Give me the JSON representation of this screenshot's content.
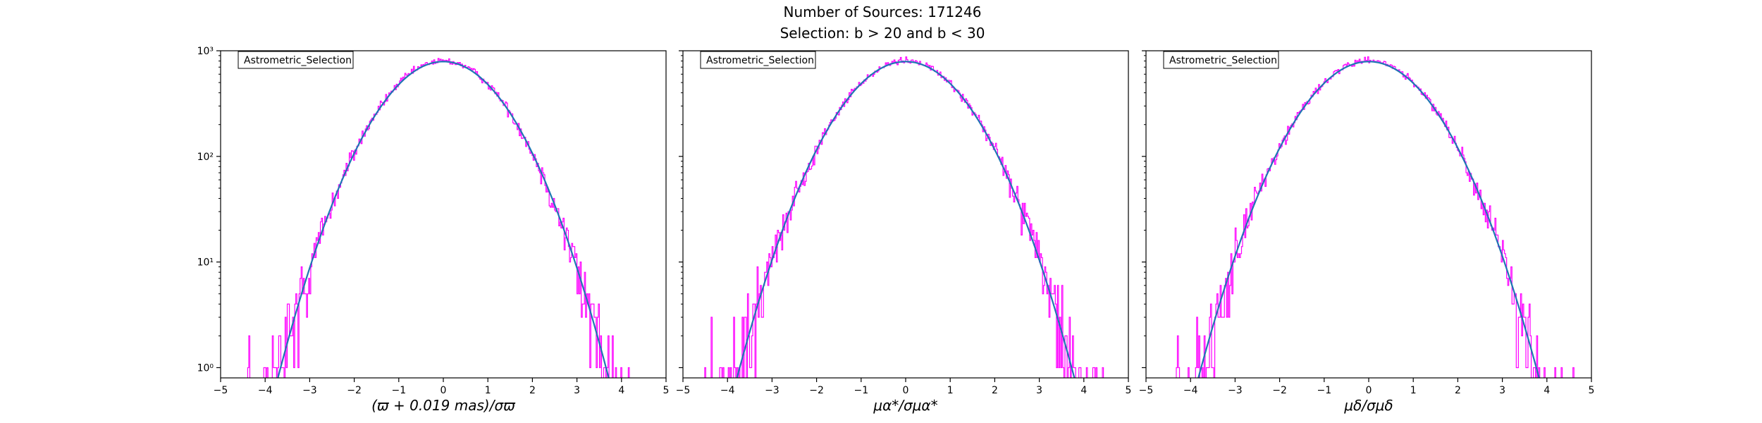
{
  "figure": {
    "title_line1": "Number of Sources: 171246",
    "title_line2": "Selection: b > 20 and b < 30"
  },
  "colors": {
    "histogram": "#ff00ff",
    "model_curve": "#1f77b4",
    "axes": "#000000"
  },
  "chart_data": [
    {
      "type": "line",
      "panel": "parallax",
      "xlabel": "(ϖ + 0.019 mas)/σϖ",
      "ylabel": "",
      "xlim": [
        -5,
        5
      ],
      "ylim": [
        0.8,
        1000
      ],
      "yscale": "log",
      "xticks": [
        "−5",
        "−4",
        "−3",
        "−2",
        "−1",
        "0",
        "1",
        "2",
        "3",
        "4",
        "5"
      ],
      "xtick_values": [
        -5,
        -4,
        -3,
        -2,
        -1,
        0,
        1,
        2,
        3,
        4,
        5
      ],
      "yticks": [
        "10³",
        "10²",
        "10¹",
        "10⁰"
      ],
      "ytick_values": [
        1000,
        100,
        10,
        1
      ],
      "legend": "Astrometric_Selection",
      "legend_position": "top-left",
      "series": [
        {
          "name": "histogram",
          "kind": "step",
          "peak": 800,
          "center": 0.0,
          "sigma": 1.0,
          "x_range": [
            -4.8,
            4.8
          ],
          "bins": 400
        },
        {
          "name": "gaussian model",
          "kind": "line",
          "peak": 790,
          "center": 0.0,
          "sigma": 1.0,
          "x_range": [
            -3.86,
            3.86
          ]
        }
      ]
    },
    {
      "type": "line",
      "panel": "pmra",
      "xlabel": "μα*/σμα*",
      "ylabel": "",
      "xlim": [
        -5,
        5
      ],
      "ylim": [
        0.8,
        1000
      ],
      "yscale": "log",
      "xticks": [
        "−5",
        "−4",
        "−3",
        "−2",
        "−1",
        "0",
        "1",
        "2",
        "3",
        "4",
        "5"
      ],
      "xtick_values": [
        -5,
        -4,
        -3,
        -2,
        -1,
        0,
        1,
        2,
        3,
        4,
        5
      ],
      "yticks": [
        "10³",
        "10²",
        "10¹",
        "10⁰"
      ],
      "ytick_values": [
        1000,
        100,
        10,
        1
      ],
      "legend": "Astrometric_Selection",
      "legend_position": "top-left",
      "series": [
        {
          "name": "histogram",
          "kind": "step",
          "peak": 800,
          "center": 0.0,
          "sigma": 1.02,
          "x_range": [
            -4.8,
            4.8
          ],
          "bins": 400
        },
        {
          "name": "gaussian model",
          "kind": "line",
          "peak": 790,
          "center": 0.0,
          "sigma": 1.02,
          "x_range": [
            -3.95,
            3.95
          ]
        }
      ]
    },
    {
      "type": "line",
      "panel": "pmdec",
      "xlabel": "μδ/σμδ",
      "ylabel": "",
      "xlim": [
        -5,
        5
      ],
      "ylim": [
        0.8,
        1000
      ],
      "yscale": "log",
      "xticks": [
        "−5",
        "−4",
        "−3",
        "−2",
        "−1",
        "0",
        "1",
        "2",
        "3",
        "4",
        "5"
      ],
      "xtick_values": [
        -5,
        -4,
        -3,
        -2,
        -1,
        0,
        1,
        2,
        3,
        4,
        5
      ],
      "yticks": [
        "10³",
        "10²",
        "10¹",
        "10⁰"
      ],
      "ytick_values": [
        1000,
        100,
        10,
        1
      ],
      "legend": "Astrometric_Selection",
      "legend_position": "top-left",
      "series": [
        {
          "name": "histogram",
          "kind": "step",
          "peak": 800,
          "center": 0.0,
          "sigma": 1.03,
          "x_range": [
            -4.8,
            4.8
          ],
          "bins": 400
        },
        {
          "name": "gaussian model",
          "kind": "line",
          "peak": 790,
          "center": 0.0,
          "sigma": 1.03,
          "x_range": [
            -4.0,
            4.0
          ]
        }
      ]
    }
  ]
}
